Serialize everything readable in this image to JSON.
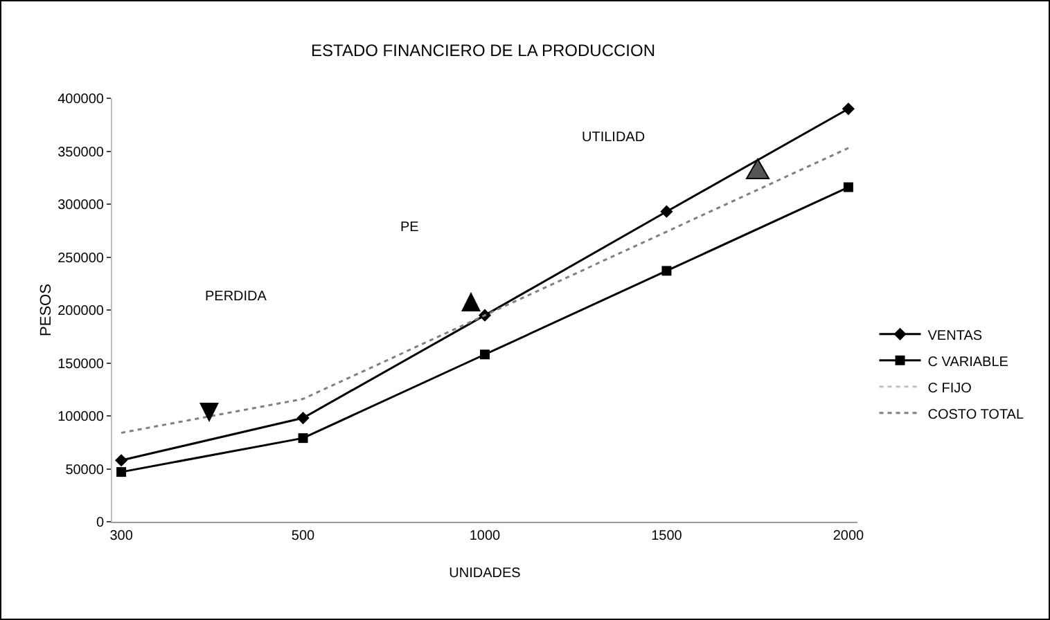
{
  "chart_data": {
    "type": "line",
    "title": "ESTADO FINANCIERO DE LA PRODUCCION",
    "xlabel": "UNIDADES",
    "ylabel": "PESOS",
    "categories": [
      "300",
      "500",
      "1000",
      "1500",
      "2000"
    ],
    "series": [
      {
        "name": "VENTAS",
        "color": "#000000",
        "marker": "diamond",
        "line_style": "solid",
        "values": [
          58000,
          98000,
          195000,
          293000,
          390000
        ]
      },
      {
        "name": "C VARIABLE",
        "color": "#000000",
        "marker": "square",
        "line_style": "solid",
        "values": [
          47000,
          79000,
          158000,
          237000,
          316000
        ]
      },
      {
        "name": "C FIJO",
        "color": "#c0c0c0",
        "marker": "none",
        "line_style": "dotted",
        "values": [
          null,
          null,
          null,
          null,
          null
        ]
      },
      {
        "name": "COSTO TOTAL",
        "color": "#808080",
        "marker": "none",
        "line_style": "dotted",
        "values": [
          84000,
          116000,
          195000,
          274000,
          353000
        ]
      }
    ],
    "ylim": [
      0,
      400000
    ],
    "yticks": [
      0,
      50000,
      100000,
      150000,
      200000,
      250000,
      300000,
      350000,
      400000
    ],
    "annotations": [
      "PERDIDA",
      "PE",
      "UTILIDAD"
    ],
    "grid": false,
    "legend": "right"
  }
}
